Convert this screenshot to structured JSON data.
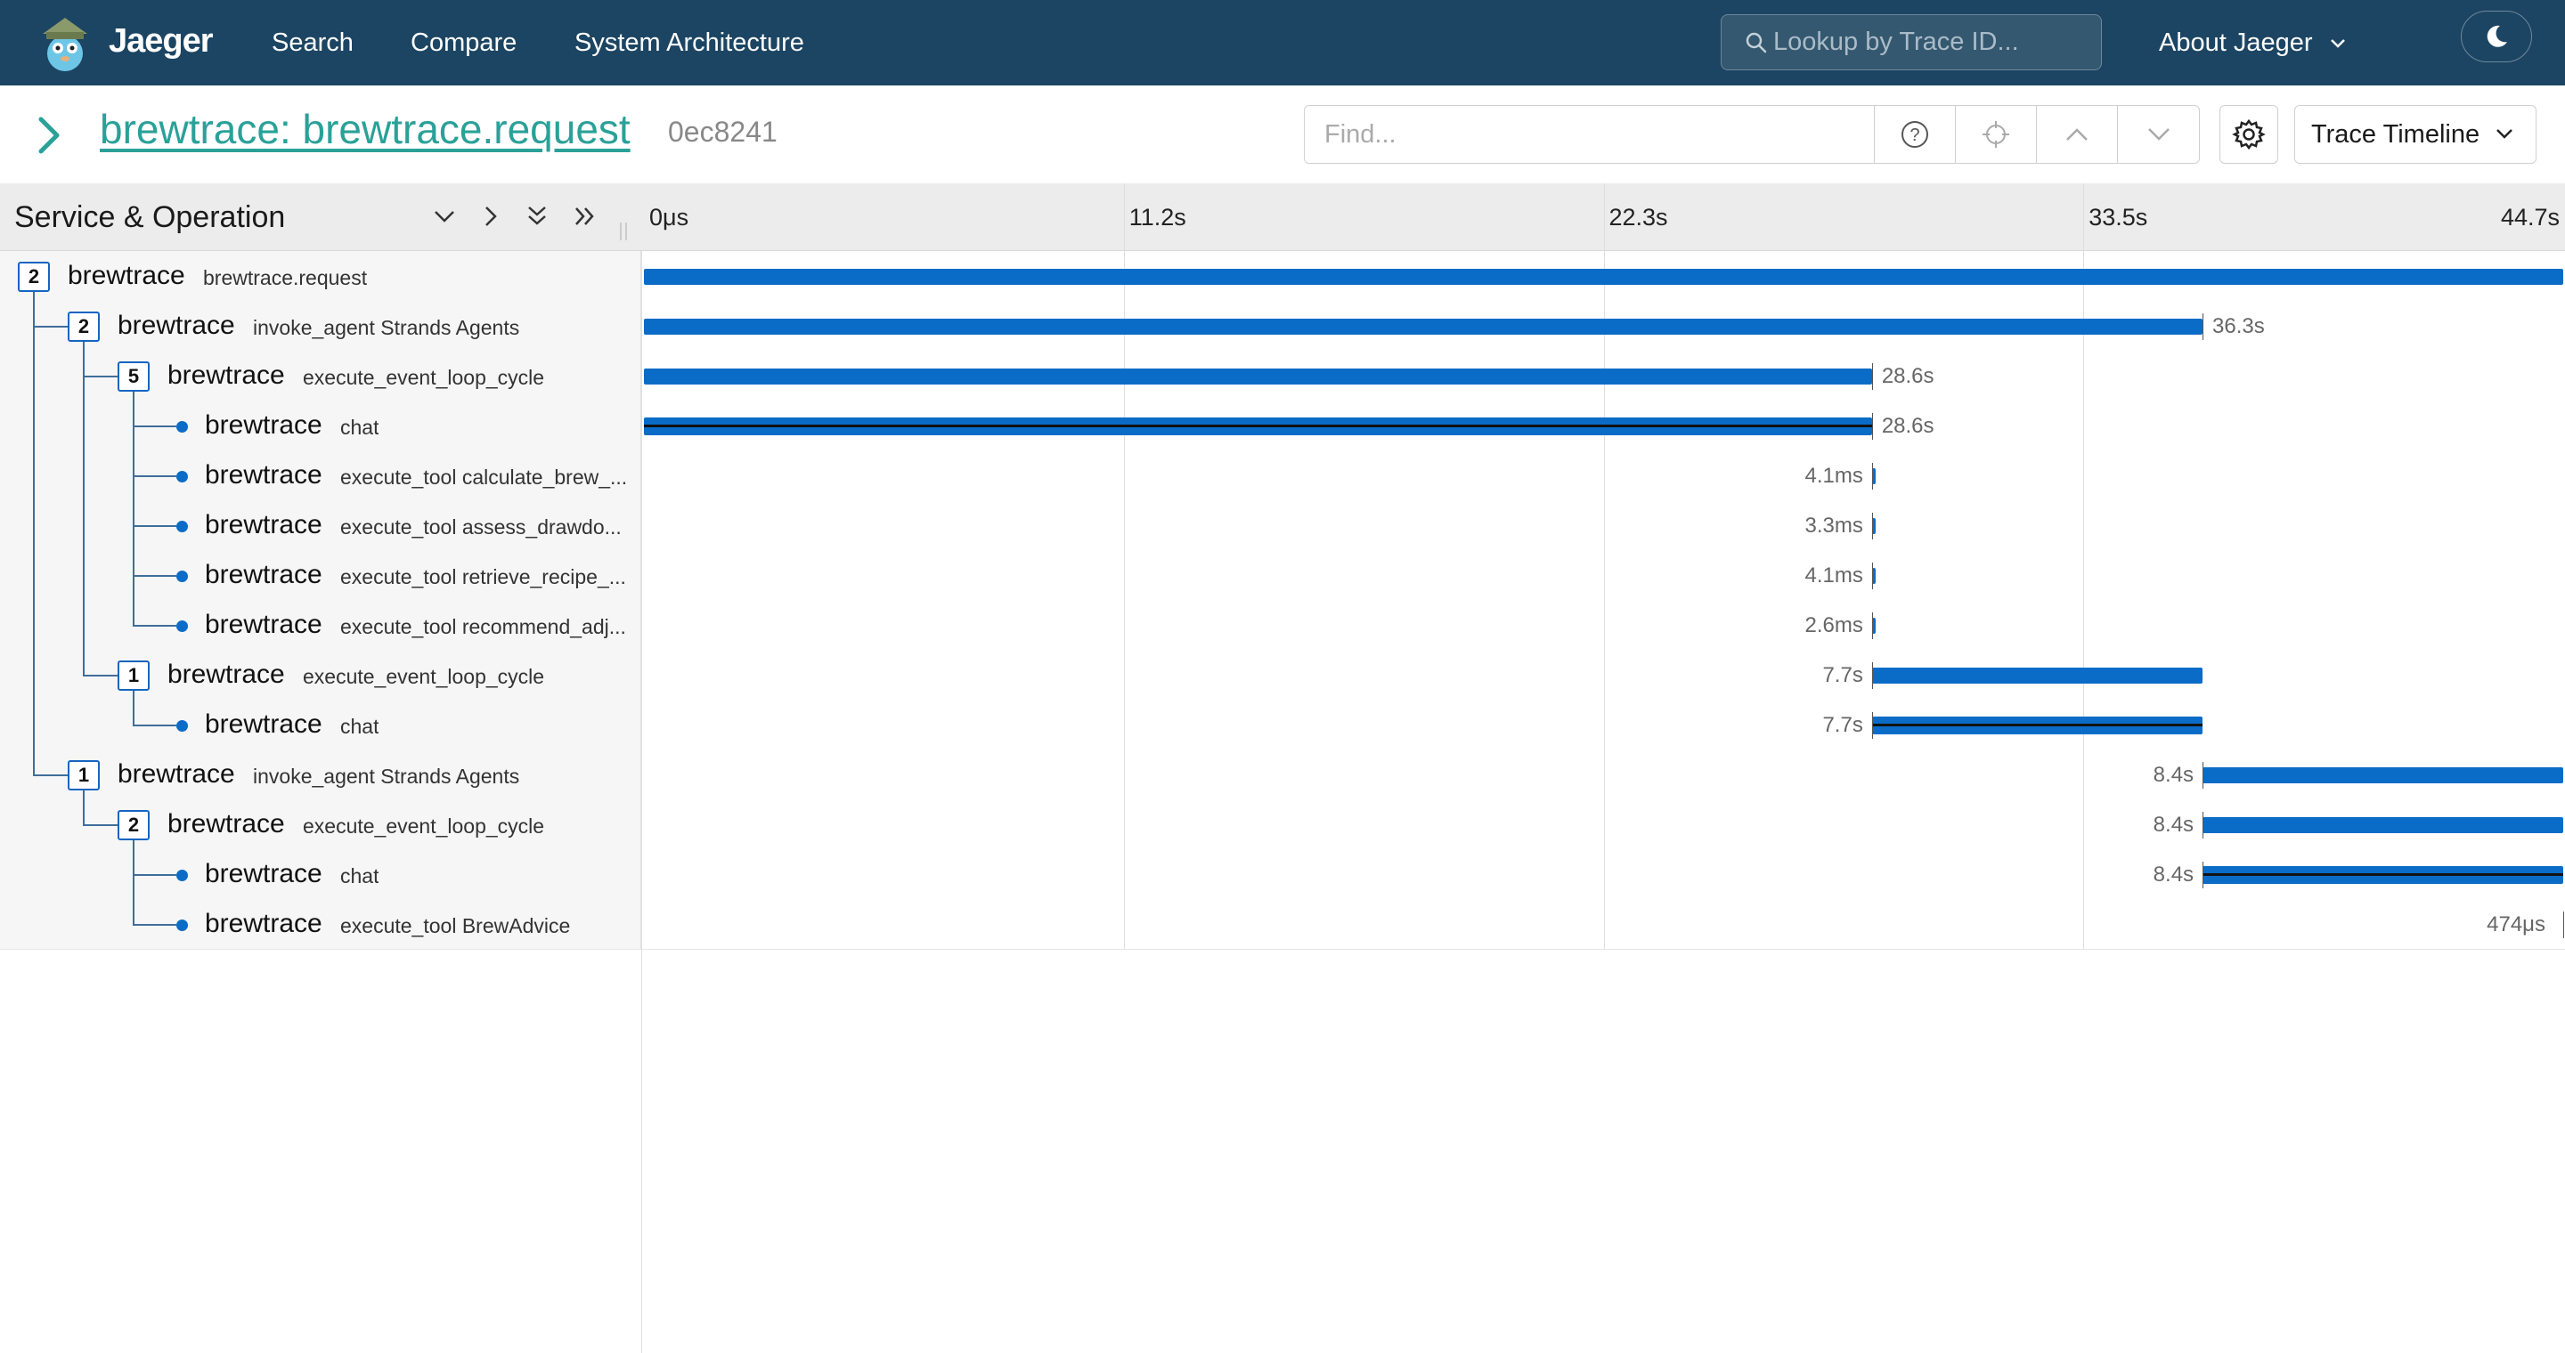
{
  "nav": {
    "brand": "Jaeger",
    "links": [
      "Search",
      "Compare",
      "System Architecture"
    ],
    "lookup_placeholder": "Lookup by Trace ID...",
    "about": "About Jaeger"
  },
  "trace": {
    "service": "brewtrace",
    "operation": "brewtrace.request",
    "title": "brewtrace: brewtrace.request",
    "trace_id": "0ec8241",
    "find_placeholder": "Find...",
    "view_mode": "Trace Timeline"
  },
  "timeline": {
    "header_title": "Service & Operation",
    "total_duration_s": 44.7,
    "ticks": [
      "0μs",
      "11.2s",
      "22.3s",
      "33.5s",
      "44.7s"
    ],
    "spans": [
      {
        "service": "brewtrace",
        "operation": "brewtrace.request",
        "depth": 0,
        "children": "2",
        "start_s": 0,
        "duration_s": 44.7,
        "duration_label": "",
        "label_side": "none",
        "logs": false
      },
      {
        "service": "brewtrace",
        "operation": "invoke_agent Strands Agents",
        "depth": 1,
        "children": "2",
        "start_s": 0,
        "duration_s": 36.3,
        "duration_label": "36.3s",
        "label_side": "right",
        "logs": false
      },
      {
        "service": "brewtrace",
        "operation": "execute_event_loop_cycle",
        "depth": 2,
        "children": "5",
        "start_s": 0,
        "duration_s": 28.6,
        "duration_label": "28.6s",
        "label_side": "right",
        "logs": false
      },
      {
        "service": "brewtrace",
        "operation": "chat",
        "depth": 3,
        "children": "",
        "start_s": 0,
        "duration_s": 28.6,
        "duration_label": "28.6s",
        "label_side": "right",
        "logs": true
      },
      {
        "service": "brewtrace",
        "operation": "execute_tool calculate_brew_...",
        "depth": 3,
        "children": "",
        "start_s": 28.6,
        "duration_s": 0.0041,
        "duration_label": "4.1ms",
        "label_side": "left",
        "logs": false
      },
      {
        "service": "brewtrace",
        "operation": "execute_tool assess_drawdo...",
        "depth": 3,
        "children": "",
        "start_s": 28.6,
        "duration_s": 0.0033,
        "duration_label": "3.3ms",
        "label_side": "left",
        "logs": false
      },
      {
        "service": "brewtrace",
        "operation": "execute_tool retrieve_recipe_...",
        "depth": 3,
        "children": "",
        "start_s": 28.6,
        "duration_s": 0.0041,
        "duration_label": "4.1ms",
        "label_side": "left",
        "logs": false
      },
      {
        "service": "brewtrace",
        "operation": "execute_tool recommend_adj...",
        "depth": 3,
        "children": "",
        "start_s": 28.6,
        "duration_s": 0.0026,
        "duration_label": "2.6ms",
        "label_side": "left",
        "logs": false
      },
      {
        "service": "brewtrace",
        "operation": "execute_event_loop_cycle",
        "depth": 2,
        "children": "1",
        "start_s": 28.6,
        "duration_s": 7.7,
        "duration_label": "7.7s",
        "label_side": "left",
        "logs": false
      },
      {
        "service": "brewtrace",
        "operation": "chat",
        "depth": 3,
        "children": "",
        "start_s": 28.6,
        "duration_s": 7.7,
        "duration_label": "7.7s",
        "label_side": "left",
        "logs": true
      },
      {
        "service": "brewtrace",
        "operation": "invoke_agent Strands Agents",
        "depth": 1,
        "children": "1",
        "start_s": 36.3,
        "duration_s": 8.4,
        "duration_label": "8.4s",
        "label_side": "left",
        "logs": false
      },
      {
        "service": "brewtrace",
        "operation": "execute_event_loop_cycle",
        "depth": 2,
        "children": "2",
        "start_s": 36.3,
        "duration_s": 8.4,
        "duration_label": "8.4s",
        "label_side": "left",
        "logs": false
      },
      {
        "service": "brewtrace",
        "operation": "chat",
        "depth": 3,
        "children": "",
        "start_s": 36.3,
        "duration_s": 8.4,
        "duration_label": "8.4s",
        "label_side": "left",
        "logs": true
      },
      {
        "service": "brewtrace",
        "operation": "execute_tool BrewAdvice",
        "depth": 3,
        "children": "",
        "start_s": 44.7,
        "duration_s": 0.000474,
        "duration_label": "474μs",
        "label_side": "left",
        "logs": false
      }
    ]
  },
  "colors": {
    "navbar": "#1c4563",
    "span_bar": "#0b6cc7",
    "title_link": "#2aa198"
  },
  "icons": [
    "jaeger-logo-icon",
    "search-icon",
    "chevron-down-icon",
    "moon-icon",
    "chevron-right-icon",
    "help-icon",
    "crosshair-icon",
    "chevron-up-icon",
    "gear-icon",
    "double-chevron-down-icon",
    "double-chevron-right-icon"
  ]
}
